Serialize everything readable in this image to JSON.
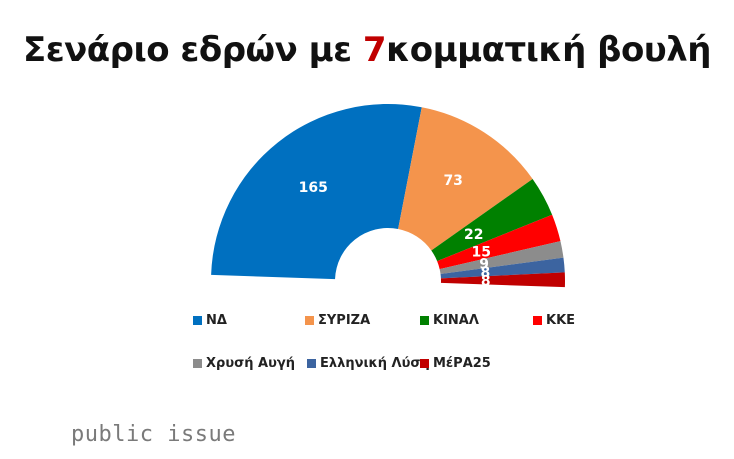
{
  "title": {
    "prefix": "Σενάριο εδρών με ",
    "accent": "7",
    "suffix": "κομματική βουλή",
    "accent_color": "#c00000"
  },
  "chart_data": {
    "type": "pie",
    "subtype": "half-donut (parliament)",
    "title": "Σενάριο εδρών με 7κομματική βουλή",
    "categories": [
      "ΝΔ",
      "ΣΥΡΙΖΑ",
      "ΚΙΝΑΛ",
      "ΚΚΕ",
      "Χρυσή Αυγή",
      "Ελληνική Λύση",
      "ΜέΡΑ25"
    ],
    "values": [
      165,
      73,
      22,
      15,
      9,
      8,
      8
    ],
    "colors": [
      "#0070c0",
      "#f4944c",
      "#008000",
      "#ff0000",
      "#8c8c8c",
      "#3c64a0",
      "#c00000"
    ],
    "total": 300,
    "data_labels": true,
    "legend_position": "bottom"
  },
  "legend": [
    {
      "label": "ΝΔ",
      "color": "#0070c0"
    },
    {
      "label": "ΣΥΡΙΖΑ",
      "color": "#f4944c"
    },
    {
      "label": "ΚΙΝΑΛ",
      "color": "#008000"
    },
    {
      "label": "ΚΚΕ",
      "color": "#ff0000"
    },
    {
      "label": "Χρυσή Αυγή",
      "color": "#8c8c8c"
    },
    {
      "label": "Ελληνική Λύση",
      "color": "#3c64a0"
    },
    {
      "label": "ΜέΡΑ25",
      "color": "#c00000"
    }
  ],
  "brand": "public issue"
}
